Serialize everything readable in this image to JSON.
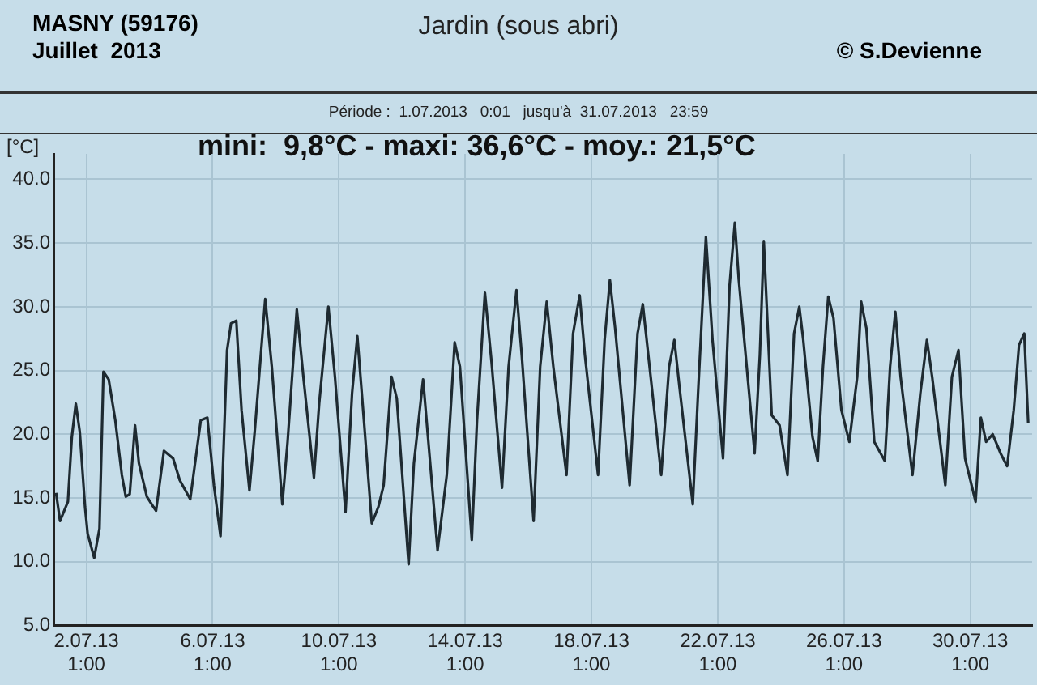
{
  "chart_data": {
    "type": "line",
    "title": "Jardin (sous abri)",
    "subtitle": "Période :  1.07.2013   0:01   jusqu'à  31.07.2013   23:59",
    "ylabel": "[°C]",
    "annotations": [
      "MASNY (59176)",
      "Juillet  2013",
      "© S.Devienne",
      "mini:  9,8°C - maxi: 36,6°C - moy.: 21,5°C"
    ],
    "xlim": [
      "2013-07-01T00:01",
      "2013-07-31T23:59"
    ],
    "xticks": [
      {
        "value": "2013-07-02T01:00",
        "label": "2.07.13\n1:00"
      },
      {
        "value": "2013-07-06T01:00",
        "label": "6.07.13\n1:00"
      },
      {
        "value": "2013-07-10T01:00",
        "label": "10.07.13\n1:00"
      },
      {
        "value": "2013-07-14T01:00",
        "label": "14.07.13\n1:00"
      },
      {
        "value": "2013-07-18T01:00",
        "label": "18.07.13\n1:00"
      },
      {
        "value": "2013-07-22T01:00",
        "label": "22.07.13\n1:00"
      },
      {
        "value": "2013-07-26T01:00",
        "label": "26.07.13\n1:00"
      },
      {
        "value": "2013-07-30T01:00",
        "label": "30.07.13\n1:00"
      }
    ],
    "ylim": [
      5,
      42
    ],
    "yticks": [
      {
        "value": 5,
        "label": "5.0"
      },
      {
        "value": 10,
        "label": "10.0"
      },
      {
        "value": 15,
        "label": "15.0"
      },
      {
        "value": 20,
        "label": "20.0"
      },
      {
        "value": 25,
        "label": "25.0"
      },
      {
        "value": 30,
        "label": "30.0"
      },
      {
        "value": 35,
        "label": "35.0"
      },
      {
        "value": 40,
        "label": "40.0"
      }
    ],
    "grid": true,
    "marker": "none",
    "line_style": "solid",
    "series": [
      {
        "color": "#1e2a31",
        "x": [
          "2013-07-01T02:00",
          "2013-07-01T05:00",
          "2013-07-01T11:00",
          "2013-07-01T14:00",
          "2013-07-01T17:00",
          "2013-07-01T20:00",
          "2013-07-02T00:00",
          "2013-07-02T02:00",
          "2013-07-02T07:00",
          "2013-07-02T11:00",
          "2013-07-02T14:00",
          "2013-07-02T18:00",
          "2013-07-02T23:00",
          "2013-07-03T04:00",
          "2013-07-03T07:00",
          "2013-07-03T10:00",
          "2013-07-03T14:00",
          "2013-07-03T17:00",
          "2013-07-03T23:00",
          "2013-07-04T04:00",
          "2013-07-04T06:00",
          "2013-07-04T12:00",
          "2013-07-04T19:00",
          "2013-07-05T00:00",
          "2013-07-05T08:00",
          "2013-07-05T16:00",
          "2013-07-05T21:00",
          "2013-07-06T02:00",
          "2013-07-06T07:00",
          "2013-07-06T12:00",
          "2013-07-06T15:00",
          "2013-07-06T19:00",
          "2013-07-06T23:00",
          "2013-07-07T05:00",
          "2013-07-07T09:00",
          "2013-07-07T17:00",
          "2013-07-07T22:00",
          "2013-07-08T06:00",
          "2013-07-08T10:00",
          "2013-07-08T17:00",
          "2013-07-08T22:00",
          "2013-07-09T06:00",
          "2013-07-09T10:00",
          "2013-07-09T17:00",
          "2013-07-09T22:00",
          "2013-07-10T06:00",
          "2013-07-10T11:00",
          "2013-07-10T15:00",
          "2013-07-10T20:00",
          "2013-07-11T02:00",
          "2013-07-11T07:00",
          "2013-07-11T11:00",
          "2013-07-11T17:00",
          "2013-07-11T21:00",
          "2013-07-12T06:00",
          "2013-07-12T10:00",
          "2013-07-12T17:00",
          "2013-07-13T04:00",
          "2013-07-13T11:00",
          "2013-07-13T17:00",
          "2013-07-13T21:00",
          "2013-07-14T06:00",
          "2013-07-14T10:00",
          "2013-07-14T16:00",
          "2013-07-14T21:00",
          "2013-07-15T05:00",
          "2013-07-15T10:00",
          "2013-07-15T16:00",
          "2013-07-15T20:00",
          "2013-07-16T05:00",
          "2013-07-16T10:00",
          "2013-07-16T15:00",
          "2013-07-16T20:00",
          "2013-07-17T06:00",
          "2013-07-17T11:00",
          "2013-07-17T16:00",
          "2013-07-17T20:00",
          "2013-07-18T06:00",
          "2013-07-18T11:00",
          "2013-07-18T15:00",
          "2013-07-18T19:00",
          "2013-07-19T06:00",
          "2013-07-19T12:00",
          "2013-07-19T16:00",
          "2013-07-19T22:00",
          "2013-07-20T06:00",
          "2013-07-20T12:00",
          "2013-07-20T16:00",
          "2013-07-20T20:00",
          "2013-07-21T06:00",
          "2013-07-21T10:00",
          "2013-07-21T16:00",
          "2013-07-21T21:00",
          "2013-07-22T05:00",
          "2013-07-22T10:00",
          "2013-07-22T14:00",
          "2013-07-22T17:00",
          "2013-07-23T05:00",
          "2013-07-23T09:00",
          "2013-07-23T12:00",
          "2013-07-23T18:00",
          "2013-07-24T00:00",
          "2013-07-24T06:00",
          "2013-07-24T11:00",
          "2013-07-24T15:00",
          "2013-07-24T18:00",
          "2013-07-25T01:00",
          "2013-07-25T05:00",
          "2013-07-25T09:00",
          "2013-07-25T13:00",
          "2013-07-25T17:00",
          "2013-07-25T23:00",
          "2013-07-26T05:00",
          "2013-07-26T11:00",
          "2013-07-26T14:00",
          "2013-07-26T18:00",
          "2013-07-27T00:00",
          "2013-07-27T08:00",
          "2013-07-27T12:00",
          "2013-07-27T16:00",
          "2013-07-27T20:00",
          "2013-07-28T05:00",
          "2013-07-28T11:00",
          "2013-07-28T16:00",
          "2013-07-28T20:00",
          "2013-07-29T06:00",
          "2013-07-29T11:00",
          "2013-07-29T16:00",
          "2013-07-29T21:00",
          "2013-07-30T05:00",
          "2013-07-30T09:00",
          "2013-07-30T13:00",
          "2013-07-30T18:00",
          "2013-07-31T00:00",
          "2013-07-31T05:00",
          "2013-07-31T10:00",
          "2013-07-31T14:00",
          "2013-07-31T18:00",
          "2013-07-31T21:00"
        ],
        "values": [
          15.4,
          13.2,
          14.7,
          19.8,
          22.4,
          20.2,
          14.3,
          12.2,
          10.3,
          12.6,
          24.9,
          24.3,
          21.1,
          16.8,
          15.1,
          15.3,
          20.7,
          17.7,
          15.1,
          14.3,
          14.0,
          18.7,
          18.1,
          16.4,
          14.9,
          21.1,
          21.3,
          16.0,
          12.0,
          26.6,
          28.7,
          28.9,
          21.9,
          15.6,
          20.2,
          30.6,
          25.3,
          14.5,
          19.4,
          29.8,
          24.5,
          16.6,
          22.4,
          30.0,
          24.5,
          13.9,
          23.2,
          27.7,
          21.1,
          13.0,
          14.3,
          16.0,
          24.5,
          22.8,
          9.8,
          17.7,
          24.3,
          10.9,
          16.8,
          27.2,
          25.3,
          11.7,
          21.1,
          31.1,
          25.7,
          15.8,
          25.3,
          31.3,
          26.2,
          13.2,
          25.3,
          30.4,
          25.3,
          16.8,
          27.9,
          30.9,
          26.2,
          16.8,
          27.4,
          32.1,
          28.3,
          16.0,
          27.9,
          30.2,
          24.5,
          16.8,
          25.3,
          27.4,
          23.6,
          14.5,
          23.2,
          35.5,
          27.4,
          18.1,
          31.7,
          36.6,
          32.1,
          18.5,
          26.2,
          35.1,
          21.5,
          20.7,
          16.8,
          27.9,
          30.0,
          27.4,
          19.8,
          17.9,
          25.3,
          30.8,
          29.1,
          21.9,
          19.4,
          24.5,
          30.4,
          28.3,
          19.4,
          17.9,
          25.3,
          29.6,
          24.5,
          16.8,
          23.2,
          27.4,
          24.5,
          16.0,
          24.5,
          26.6,
          18.1,
          14.7,
          21.3,
          19.4,
          20.0,
          18.5,
          17.5,
          21.9,
          27.0,
          27.9,
          20.9
        ]
      }
    ]
  }
}
